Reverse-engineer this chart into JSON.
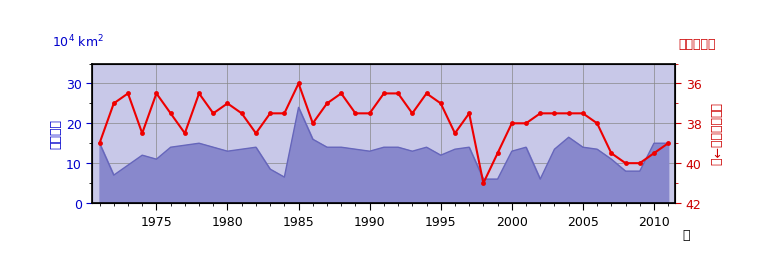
{
  "years": [
    1971,
    1972,
    1973,
    1974,
    1975,
    1976,
    1977,
    1978,
    1979,
    1980,
    1981,
    1982,
    1983,
    1984,
    1985,
    1986,
    1987,
    1988,
    1989,
    1990,
    1991,
    1992,
    1993,
    1994,
    1995,
    1996,
    1997,
    1998,
    1999,
    2000,
    2001,
    2002,
    2003,
    2004,
    2005,
    2006,
    2007,
    2008,
    2009,
    2010,
    2011
  ],
  "area": [
    15.0,
    7.0,
    9.5,
    12.0,
    11.0,
    14.0,
    14.5,
    15.0,
    14.0,
    13.0,
    13.5,
    14.0,
    8.5,
    6.5,
    24.0,
    16.0,
    14.0,
    14.0,
    13.5,
    13.0,
    14.0,
    14.0,
    13.0,
    14.0,
    12.0,
    13.5,
    14.0,
    6.0,
    6.0,
    13.0,
    14.0,
    6.0,
    13.5,
    16.5,
    14.0,
    13.5,
    11.0,
    8.0,
    8.0,
    15.0,
    15.0
  ],
  "latitude": [
    39.0,
    37.0,
    36.5,
    38.5,
    36.5,
    37.5,
    38.5,
    36.5,
    37.5,
    37.0,
    37.5,
    38.5,
    37.5,
    37.5,
    36.0,
    38.0,
    37.0,
    36.5,
    37.5,
    37.5,
    36.5,
    36.5,
    37.5,
    36.5,
    37.0,
    38.5,
    37.5,
    41.0,
    39.5,
    38.0,
    38.0,
    37.5,
    37.5,
    37.5,
    37.5,
    38.0,
    39.5,
    40.0,
    40.0,
    39.5,
    39.0
  ],
  "area_fill_color": "#8888cc",
  "area_line_color": "#6666bb",
  "red_line_color": "#ee0000",
  "bg_green": "#e0f0e0",
  "bg_blue": "#c8c8e8",
  "left_unit": "10",
  "left_unit_sup": "4",
  "left_unit_km": " km",
  "left_unit_km_sup": "2",
  "left_ylabel": "平均面積",
  "right_title": "北緯（度）",
  "right_ylabel": "平均南限位置→北",
  "year_label": "年",
  "ylim_left": [
    0,
    35
  ],
  "ylim_right_bottom": 42,
  "ylim_right_top": 35,
  "yticks_left": [
    0,
    10,
    20,
    30
  ],
  "yticks_right": [
    36,
    38,
    40,
    42
  ],
  "xticks_major": [
    1975,
    1980,
    1985,
    1990,
    1995,
    2000,
    2005,
    2010
  ],
  "grid_color": "#888888",
  "spine_color": "#000000",
  "tick_color_left": "#0000cc",
  "tick_color_right": "#cc0000"
}
